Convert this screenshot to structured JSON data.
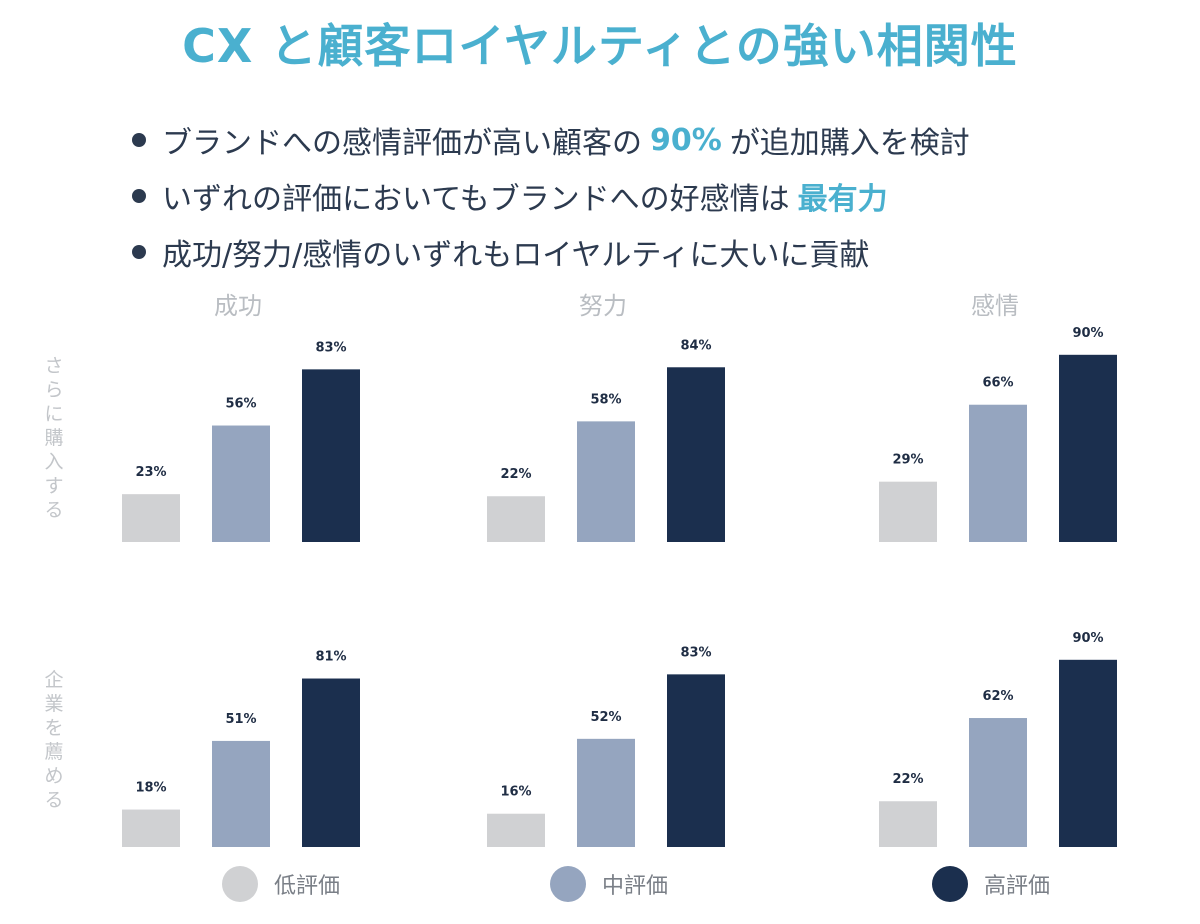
{
  "title": "CX と顧客ロイヤルティとの強い相関性",
  "bullets": [
    {
      "pre": "ブランドへの感情評価が高い顧客の",
      "highlight": "90%",
      "post": "が追加購入を検討"
    },
    {
      "pre": "いずれの評価においてもブランドへの好感情は",
      "highlight": "最有力",
      "post": ""
    },
    {
      "pre": "成功/努力/感情のいずれもロイヤルティに大いに貢献",
      "highlight": "",
      "post": ""
    }
  ],
  "colors": {
    "accent": "#4ab0cf",
    "low": "#d0d1d3",
    "mid": "#95a5bf",
    "high": "#1b2f4e"
  },
  "chart_data": {
    "type": "bar",
    "title": "CX と顧客ロイヤルティとの強い相関性",
    "groups": [
      "成功",
      "努力",
      "感情"
    ],
    "rows": [
      "さらに購入する",
      "企業を薦める"
    ],
    "series_names": [
      "低評価",
      "中評価",
      "高評価"
    ],
    "unit": "%",
    "ylim": [
      0,
      100
    ],
    "panels": [
      {
        "row": "さらに購入する",
        "group": "成功",
        "values": [
          23,
          56,
          83
        ]
      },
      {
        "row": "さらに購入する",
        "group": "努力",
        "values": [
          22,
          58,
          84
        ]
      },
      {
        "row": "さらに購入する",
        "group": "感情",
        "values": [
          29,
          66,
          90
        ]
      },
      {
        "row": "企業を薦める",
        "group": "成功",
        "values": [
          18,
          51,
          81
        ]
      },
      {
        "row": "企業を薦める",
        "group": "努力",
        "values": [
          16,
          52,
          83
        ]
      },
      {
        "row": "企業を薦める",
        "group": "感情",
        "values": [
          22,
          62,
          90
        ]
      }
    ]
  }
}
